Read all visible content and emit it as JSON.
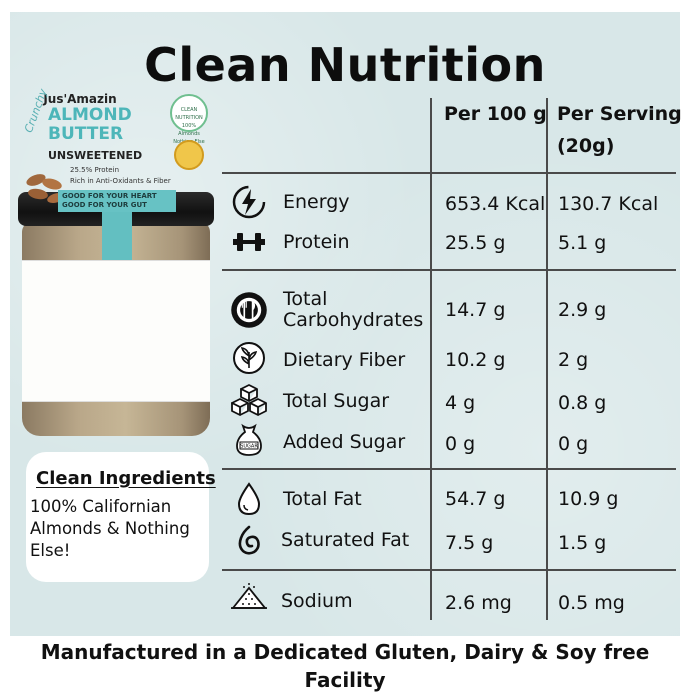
{
  "title": "Clean Nutrition",
  "table": {
    "col_headers": [
      "Per 100 g",
      "Per Serving",
      "(20g)"
    ],
    "rows": [
      {
        "icon": "lightning-bolt-icon",
        "label": "Energy",
        "per100": "653.4 Kcal",
        "serving": "130.7 Kcal"
      },
      {
        "icon": "dumbbell-icon",
        "label": "Protein",
        "per100": "25.5 g",
        "serving": "5.1 g"
      },
      {
        "icon": "plate-cutlery-icon",
        "label": "Total",
        "label2": "Carbohydrates",
        "per100": "14.7 g",
        "serving": "2.9 g"
      },
      {
        "icon": "leaf-icon",
        "label": "Dietary Fiber",
        "per100": "10.2 g",
        "serving": "2 g"
      },
      {
        "icon": "sugar-cubes-icon",
        "label": "Total Sugar",
        "per100": "4 g",
        "serving": "0.8 g"
      },
      {
        "icon": "sugar-sack-icon",
        "label": "Added Sugar",
        "per100": "0 g",
        "serving": "0 g"
      },
      {
        "icon": "drop-icon",
        "label": "Total Fat",
        "per100": "54.7 g",
        "serving": "10.9 g"
      },
      {
        "icon": "swirl-drop-icon",
        "label": "Saturated Fat",
        "per100": "7.5 g",
        "serving": "1.5 g"
      },
      {
        "icon": "salt-pile-icon",
        "label": "Sodium",
        "per100": "2.6 mg",
        "serving": "0.5 mg"
      }
    ]
  },
  "sack_text": "SUGAR",
  "jar": {
    "brand": "Jus'Amazin",
    "style": "Crunchy",
    "product_line1": "ALMOND",
    "product_line2": "BUTTER",
    "variant": "UNSWEETENED",
    "protein": "25.5% Protein",
    "claim": "Rich in Anti-Oxidants & Fiber",
    "good1": "GOOD FOR YOUR HEART",
    "good2": "GOOD FOR YOUR GUT",
    "badge": "CLEAN NUTRITION 100% Almonds Nothing Else"
  },
  "ingredients": {
    "title": "Clean Ingredients",
    "text": "100% Californian Almonds & Nothing Else!"
  },
  "footer": "Manufactured in a Dedicated Gluten, Dairy & Soy free Facility",
  "colors": {
    "background": "#d8e7e8",
    "accent": "#4db6b9",
    "text": "#111111"
  }
}
